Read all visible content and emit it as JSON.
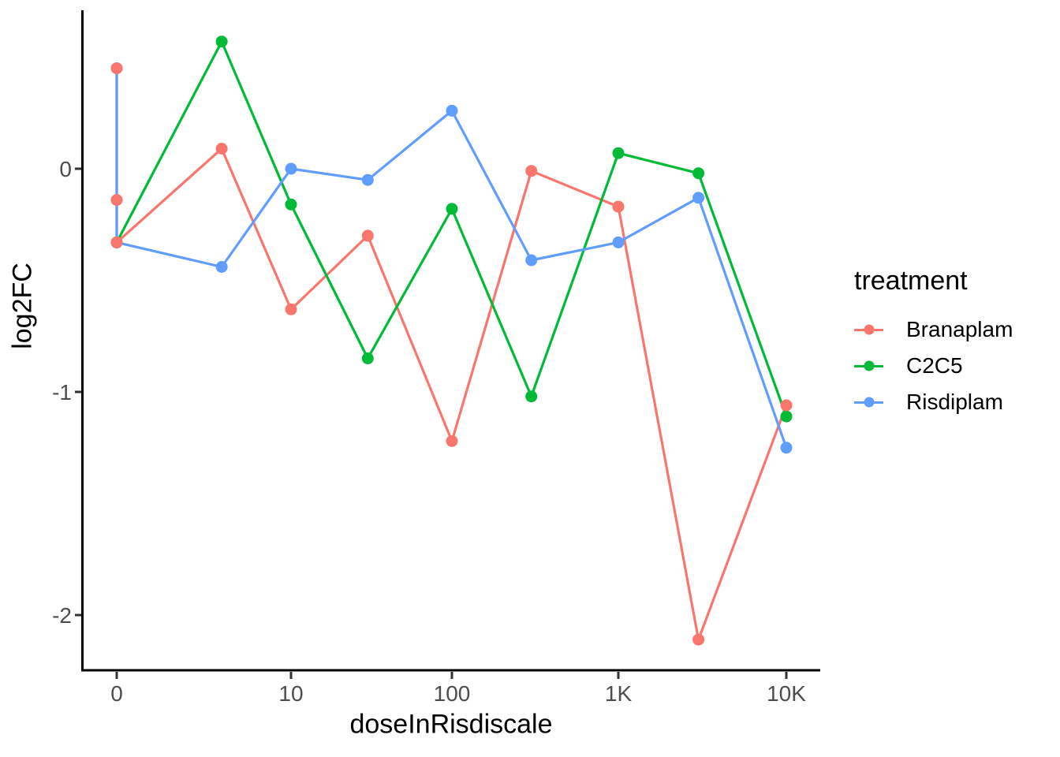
{
  "chart_data": {
    "type": "line",
    "title": "",
    "xlabel": "doseInRisdiscale",
    "ylabel": "log2FC",
    "x_scale": "pseudo-log with zero shown at left end",
    "x_tick_labels": [
      "0",
      "10",
      "100",
      "1K",
      "10K"
    ],
    "x_tick_doses": [
      0,
      10,
      100,
      1000,
      10000
    ],
    "y_tick_labels": [
      "0",
      "-1",
      "-2"
    ],
    "y_ticks": [
      0,
      -1,
      -2
    ],
    "ylim": [
      -2.25,
      0.71
    ],
    "grid": "off",
    "legend_position": "right",
    "series": [
      {
        "name": "Branaplam",
        "color": "#F8766D",
        "points": [
          [
            0,
            0.45
          ],
          [
            0,
            -0.14
          ],
          [
            0,
            -0.33
          ],
          [
            4,
            0.09
          ],
          [
            10,
            -0.63
          ],
          [
            30,
            -0.3
          ],
          [
            100,
            -1.22
          ],
          [
            300,
            -0.01
          ],
          [
            1000,
            -0.17
          ],
          [
            3000,
            -2.11
          ],
          [
            10000,
            -1.06
          ]
        ]
      },
      {
        "name": "C2C5",
        "color": "#00BA38",
        "points": [
          [
            0,
            -0.33
          ],
          [
            4,
            0.57
          ],
          [
            10,
            -0.16
          ],
          [
            30,
            -0.85
          ],
          [
            100,
            -0.18
          ],
          [
            300,
            -1.02
          ],
          [
            1000,
            0.07
          ],
          [
            3000,
            -0.02
          ],
          [
            10000,
            -1.11
          ]
        ]
      },
      {
        "name": "Risdiplam",
        "color": "#619CFF",
        "points": [
          [
            0,
            0.45
          ],
          [
            0,
            -0.33
          ],
          [
            4,
            -0.44
          ],
          [
            10,
            0.0
          ],
          [
            30,
            -0.05
          ],
          [
            100,
            0.26
          ],
          [
            300,
            -0.41
          ],
          [
            1000,
            -0.33
          ],
          [
            3000,
            -0.13
          ],
          [
            10000,
            -1.25
          ]
        ]
      }
    ]
  },
  "legend": {
    "title": "treatment",
    "items": [
      {
        "label": "Branaplam",
        "color": "#F8766D"
      },
      {
        "label": "C2C5",
        "color": "#00BA38"
      },
      {
        "label": "Risdiplam",
        "color": "#619CFF"
      }
    ]
  },
  "colors": {
    "background": "#FFFFFF",
    "axis_line": "#000000",
    "tick_mark": "#333333",
    "tick_label": "#4D4D4D",
    "axis_title": "#000000"
  }
}
